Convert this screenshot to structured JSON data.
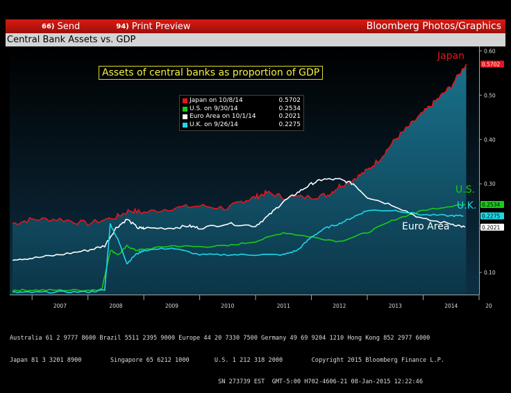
{
  "toolbar": {
    "send_num": "66)",
    "send_label": "Send",
    "print_num": "94)",
    "print_label": "Print Preview",
    "brand": "Bloomberg Photos/Graphics"
  },
  "header": {
    "subtitle": "Central Bank Assets vs. GDP"
  },
  "chart_data": {
    "type": "line",
    "title": "Assets of central banks as proportion of GDP",
    "xlabel": "",
    "ylabel": "",
    "x_tick_labels": [
      "2007",
      "2008",
      "2009",
      "2010",
      "2011",
      "2012",
      "2013",
      "2014",
      "20"
    ],
    "y_tick_labels": [
      "0.10",
      "0.20",
      "0.30",
      "0.40",
      "0.50",
      "0.60"
    ],
    "ylim": [
      0.05,
      0.61
    ],
    "xlim": [
      2006.6,
      2015.0
    ],
    "grid": false,
    "legend_position": "top-center",
    "legend": [
      {
        "label": "Japan on 10/8/14",
        "value": "0.5702",
        "color": "#e8141c"
      },
      {
        "label": "U.S. on 9/30/14",
        "value": "0.2534",
        "color": "#18cc18"
      },
      {
        "label": "Euro Area on 10/1/14",
        "value": "0.2021",
        "color": "#ffffff"
      },
      {
        "label": "U.K. on 9/26/14",
        "value": "0.2275",
        "color": "#1ed8e8"
      }
    ],
    "annotations": {
      "japan": "Japan",
      "us": "U.S.",
      "uk": "U.K.",
      "euro": "Euro Area"
    },
    "series": [
      {
        "name": "Japan",
        "color": "#e8141c",
        "last_value": "0.5702",
        "x": [
          2006.65,
          2007.0,
          2007.5,
          2008.0,
          2008.5,
          2008.75,
          2009.0,
          2009.5,
          2010.0,
          2010.5,
          2010.75,
          2011.0,
          2011.2,
          2011.5,
          2012.0,
          2012.3,
          2012.5,
          2012.75,
          2013.0,
          2013.25,
          2013.5,
          2013.75,
          2014.0,
          2014.25,
          2014.5,
          2014.77
        ],
        "y": [
          0.21,
          0.22,
          0.22,
          0.21,
          0.225,
          0.24,
          0.235,
          0.245,
          0.25,
          0.245,
          0.26,
          0.27,
          0.28,
          0.27,
          0.27,
          0.275,
          0.295,
          0.31,
          0.33,
          0.36,
          0.4,
          0.43,
          0.46,
          0.49,
          0.52,
          0.5702
        ]
      },
      {
        "name": "U.S.",
        "color": "#18cc18",
        "last_value": "0.2534",
        "x": [
          2006.65,
          2007.0,
          2007.5,
          2008.0,
          2008.25,
          2008.4,
          2008.55,
          2008.7,
          2008.85,
          2009.0,
          2009.5,
          2010.0,
          2010.5,
          2011.0,
          2011.5,
          2012.0,
          2012.5,
          2013.0,
          2013.5,
          2014.0,
          2014.5,
          2014.75
        ],
        "y": [
          0.06,
          0.06,
          0.06,
          0.06,
          0.062,
          0.15,
          0.14,
          0.16,
          0.15,
          0.152,
          0.16,
          0.158,
          0.16,
          0.17,
          0.19,
          0.18,
          0.17,
          0.19,
          0.22,
          0.24,
          0.25,
          0.2534
        ]
      },
      {
        "name": "Euro Area",
        "color": "#ffffff",
        "last_value": "0.2021",
        "x": [
          2006.65,
          2007.0,
          2007.5,
          2008.0,
          2008.3,
          2008.5,
          2008.7,
          2008.9,
          2009.0,
          2009.5,
          2009.8,
          2010.0,
          2010.5,
          2011.0,
          2011.25,
          2011.5,
          2011.75,
          2012.0,
          2012.2,
          2012.5,
          2012.75,
          2013.0,
          2013.5,
          2014.0,
          2014.5,
          2014.75
        ],
        "y": [
          0.13,
          0.132,
          0.14,
          0.15,
          0.16,
          0.2,
          0.22,
          0.2,
          0.2,
          0.2,
          0.205,
          0.2,
          0.21,
          0.205,
          0.23,
          0.26,
          0.28,
          0.3,
          0.31,
          0.31,
          0.3,
          0.27,
          0.25,
          0.22,
          0.21,
          0.2021
        ]
      },
      {
        "name": "U.K.",
        "color": "#1ed8e8",
        "last_value": "0.2275",
        "x": [
          2006.65,
          2007.0,
          2007.5,
          2008.0,
          2008.3,
          2008.4,
          2008.55,
          2008.7,
          2008.85,
          2009.0,
          2009.5,
          2010.0,
          2010.5,
          2011.0,
          2011.5,
          2011.75,
          2012.0,
          2012.25,
          2012.5,
          2012.75,
          2013.0,
          2013.5,
          2014.0,
          2014.5,
          2014.72
        ],
        "y": [
          0.055,
          0.055,
          0.056,
          0.056,
          0.06,
          0.21,
          0.17,
          0.12,
          0.14,
          0.15,
          0.155,
          0.14,
          0.14,
          0.14,
          0.14,
          0.15,
          0.18,
          0.2,
          0.21,
          0.225,
          0.24,
          0.24,
          0.23,
          0.228,
          0.2275
        ]
      }
    ]
  },
  "footer": {
    "line1": "Australia 61 2 9777 8600 Brazil 5511 2395 9000 Europe 44 20 7330 7500 Germany 49 69 9204 1210 Hong Kong 852 2977 6000",
    "line2": "Japan 81 3 3201 8900        Singapore 65 6212 1000       U.S. 1 212 318 2000        Copyright 2015 Bloomberg Finance L.P.",
    "line3": "                                                          SN 273739 EST  GMT-5:00 H702-4606-21 08-Jan-2015 12:22:46"
  }
}
